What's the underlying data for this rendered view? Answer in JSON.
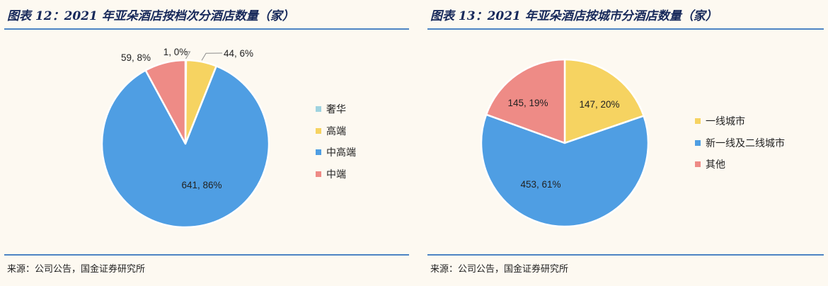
{
  "left": {
    "title": "图表 12：2021 年亚朵酒店按档次分酒店数量（家）",
    "source": "来源：公司公告，国金证券研究所"
  },
  "right": {
    "title": "图表 13：2021 年亚朵酒店按城市分酒店数量（家）",
    "source": "来源：公司公告，国金证券研究所"
  },
  "chart_data": [
    {
      "type": "pie",
      "title": "图表 12：2021 年亚朵酒店按档次分酒店数量（家）",
      "legend_position": "right",
      "slices": [
        {
          "name": "奢华",
          "value": 1,
          "percent": 0,
          "label": "1, 0%",
          "color": "#9fd3e0"
        },
        {
          "name": "高端",
          "value": 44,
          "percent": 6,
          "label": "44, 6%",
          "color": "#f6d361"
        },
        {
          "name": "中高端",
          "value": 641,
          "percent": 86,
          "label": "641, 86%",
          "color": "#4f9ee3"
        },
        {
          "name": "中端",
          "value": 59,
          "percent": 8,
          "label": "59, 8%",
          "color": "#ee8b86"
        }
      ]
    },
    {
      "type": "pie",
      "title": "图表 13：2021 年亚朵酒店按城市分酒店数量（家）",
      "legend_position": "right",
      "slices": [
        {
          "name": "一线城市",
          "value": 147,
          "percent": 20,
          "label": "147, 20%",
          "color": "#f6d361"
        },
        {
          "name": "新一线及二线城市",
          "value": 453,
          "percent": 61,
          "label": "453, 61%",
          "color": "#4f9ee3"
        },
        {
          "name": "其他",
          "value": 145,
          "percent": 19,
          "label": "145, 19%",
          "color": "#ee8b86"
        }
      ]
    }
  ]
}
